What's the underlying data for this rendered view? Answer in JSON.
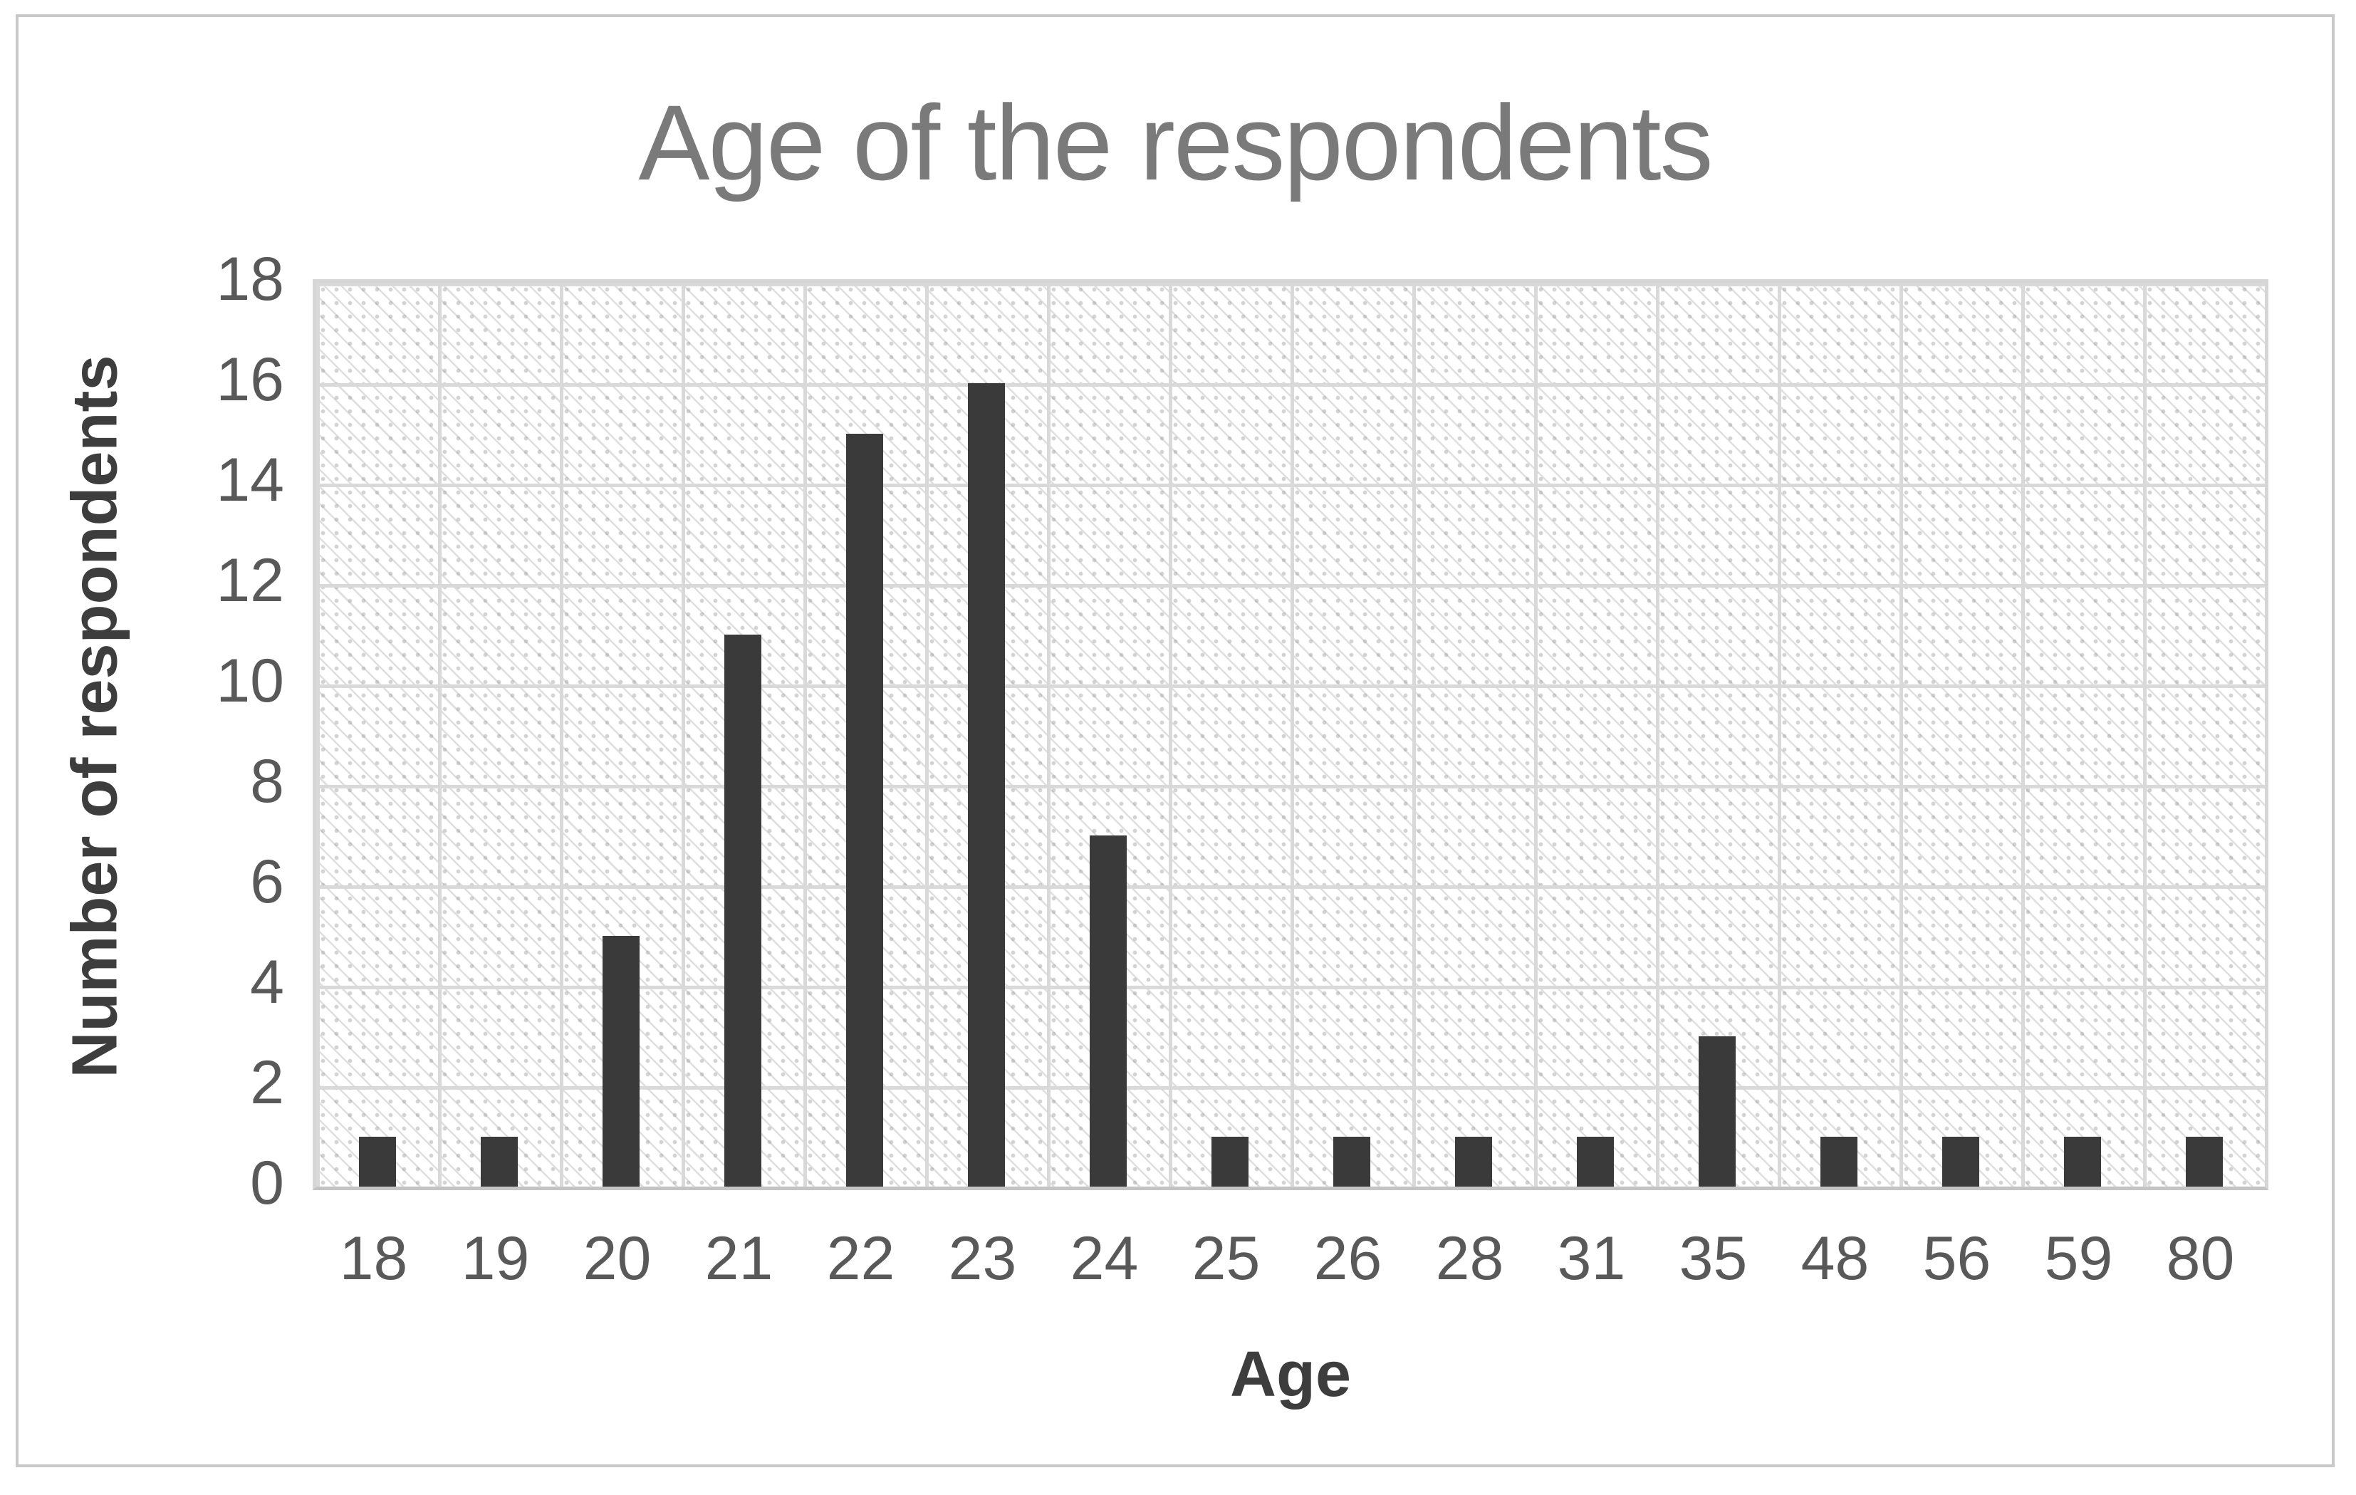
{
  "title": "Age of the respondents",
  "colors": {
    "bar": "#3a3a3a",
    "gridline": "#d9d9d9",
    "frame_border": "#c9c9c9",
    "title_text": "#7a7a7a",
    "tick_text": "#595959",
    "axis_title_text": "#3d3d3d"
  },
  "chart_data": {
    "type": "bar",
    "title": "Age of the respondents",
    "categories": [
      "18",
      "19",
      "20",
      "21",
      "22",
      "23",
      "24",
      "25",
      "26",
      "28",
      "31",
      "35",
      "48",
      "56",
      "59",
      "80"
    ],
    "values": [
      1,
      1,
      5,
      11,
      15,
      16,
      7,
      1,
      1,
      1,
      1,
      3,
      1,
      1,
      1,
      1
    ],
    "xlabel": "Age",
    "ylabel": "Number of respondents",
    "ylim": [
      0,
      18
    ],
    "y_ticks": [
      "0",
      "2",
      "4",
      "6",
      "8",
      "10",
      "12",
      "14",
      "16",
      "18"
    ],
    "grid": "both",
    "legend": "none",
    "plot_pattern": "diagonal-hatch"
  }
}
